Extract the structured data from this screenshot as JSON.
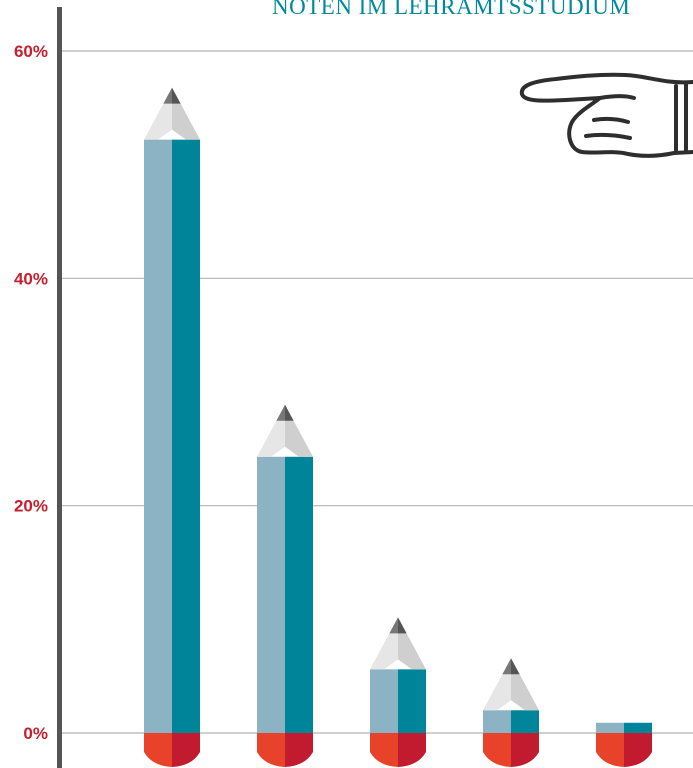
{
  "chart_data": {
    "type": "bar",
    "title": "NOTEN IM LEHRAMTSSTUDIUM",
    "xlabel": "",
    "ylabel": "",
    "categories": [
      "",
      "",
      "",
      "",
      ""
    ],
    "values": [
      52.2,
      24.3,
      5.6,
      2.0,
      0.9
    ],
    "yticks": [
      {
        "value": 0,
        "label": "0%"
      },
      {
        "value": 20,
        "label": "20%"
      },
      {
        "value": 40,
        "label": "40%"
      },
      {
        "value": 60,
        "label": "60%"
      }
    ],
    "ylim": [
      0,
      60
    ],
    "grid": true,
    "colors": {
      "shaft_light": "#8bb3c4",
      "shaft_dark": "#00849a",
      "wood_light": "#e6e6e6",
      "wood_dark": "#cfcfcf",
      "lead": "#555555",
      "eraser_light": "#e8432a",
      "eraser_dark": "#c21a2f",
      "axis": "#555555",
      "grid": "#b5b5b5",
      "title": "#00899c",
      "tick_label": "#c4202e"
    },
    "decoration": "pointing-hand-icon"
  }
}
